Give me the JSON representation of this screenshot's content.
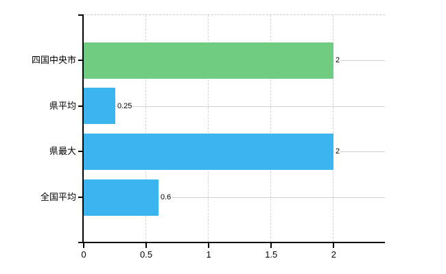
{
  "chart_data": {
    "type": "bar",
    "orientation": "horizontal",
    "title": "",
    "xlabel": "",
    "ylabel": "",
    "categories": [
      "四国中央市",
      "県平均",
      "県最大",
      "全国平均"
    ],
    "values": [
      2,
      0.25,
      2,
      0.6
    ],
    "value_labels": [
      "2",
      "0.25",
      "2",
      "0.6"
    ],
    "bar_colors": [
      "#6fcc80",
      "#3cb5ee",
      "#3cb5ee",
      "#3cb5ee"
    ],
    "xlim": [
      0,
      2.41
    ],
    "x_ticks": [
      0,
      0.5,
      1,
      1.5,
      2
    ],
    "x_tick_labels": [
      "0",
      "0.5",
      "1",
      "1.5",
      "2"
    ],
    "grid": true,
    "legend": false
  },
  "colors": {
    "highlight_bar": "#6fcc80",
    "default_bar": "#3cb5ee",
    "axis": "#000000",
    "vertical_gridline": "#d2d2d2",
    "horizontal_gridline": "#ccd4cc",
    "top_border": "#cbcbcb",
    "text": "#000000",
    "background": "#ffffff"
  }
}
